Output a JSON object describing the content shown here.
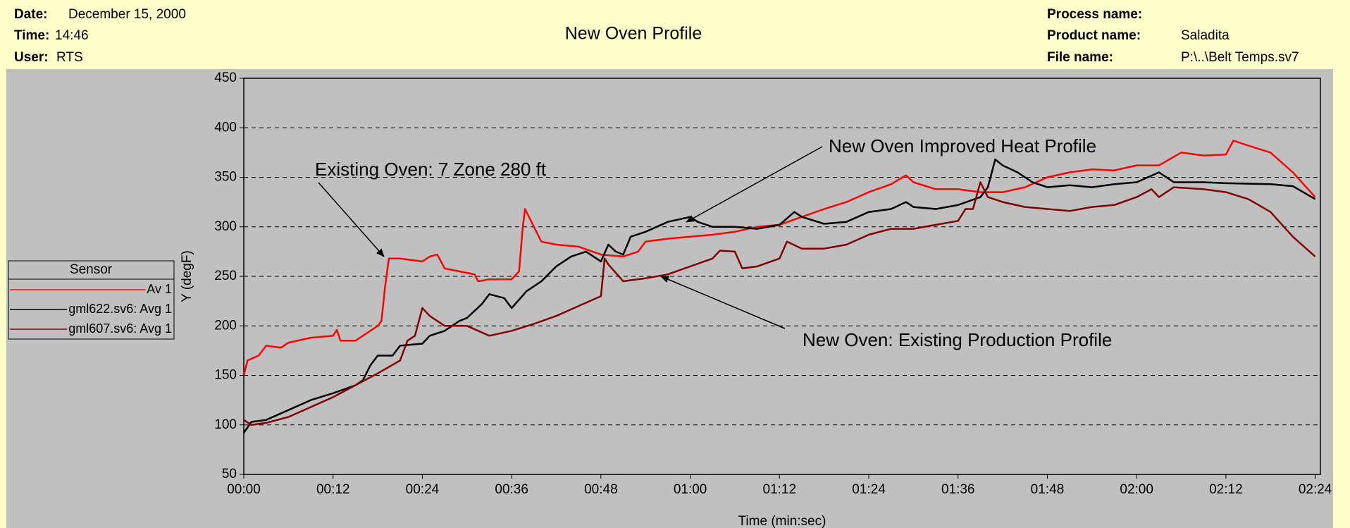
{
  "header": {
    "date_label": "Date:",
    "date": "December 15, 2000",
    "time_label": "Time:",
    "time": "14:46",
    "user_label": "User:",
    "user": "RTS",
    "process_label": "Process name:",
    "product_label": "Product name:",
    "product": "Saladita",
    "file_label": "File name:",
    "file": "P:\\..\\Belt Temps.sv7"
  },
  "chart_data": {
    "type": "line",
    "title": "New Oven Profile",
    "xlabel": "Time (min:sec)",
    "ylabel": "Y (degF)",
    "xlim": [
      0,
      144.7
    ],
    "ylim": [
      50,
      450
    ],
    "xticks": [
      {
        "value": 0,
        "label": "00:00"
      },
      {
        "value": 12,
        "label": "00:12"
      },
      {
        "value": 24,
        "label": "00:24"
      },
      {
        "value": 36,
        "label": "00:36"
      },
      {
        "value": 48,
        "label": "00:48"
      },
      {
        "value": 60,
        "label": "01:00"
      },
      {
        "value": 72,
        "label": "01:12"
      },
      {
        "value": 84,
        "label": "01:24"
      },
      {
        "value": 96,
        "label": "01:36"
      },
      {
        "value": 108,
        "label": "01:48"
      },
      {
        "value": 120,
        "label": "02:00"
      },
      {
        "value": 132,
        "label": "02:12"
      },
      {
        "value": 144,
        "label": "02:24"
      }
    ],
    "yticks": [
      50,
      100,
      150,
      200,
      250,
      300,
      350,
      400,
      450
    ],
    "grid": true,
    "legend_title": "Sensor",
    "annotations": [
      "Existing Oven: 7 Zone 280 ft",
      "New Oven Improved Heat Profile",
      "New Oven:  Existing Production Profile"
    ],
    "series": [
      {
        "name": "Av 1",
        "color": "#ff0000",
        "x": [
          0,
          0.5,
          2,
          3,
          5,
          6,
          9,
          12,
          12.5,
          13,
          15,
          16,
          18,
          18.5,
          19,
          19.5,
          21,
          24,
          25,
          26,
          27,
          29,
          31,
          31.5,
          33,
          36,
          37,
          37.5,
          37.8,
          39,
          40,
          42,
          45,
          48,
          51,
          53,
          54,
          57,
          60,
          63,
          66,
          69,
          72,
          75,
          78,
          81,
          84,
          87,
          89,
          90,
          93,
          96,
          99,
          102,
          105,
          108,
          111,
          114,
          117,
          120,
          123,
          126,
          129,
          132,
          133,
          135,
          138,
          141,
          144
        ],
        "values": [
          150,
          165,
          170,
          180,
          178,
          183,
          188,
          190,
          196,
          185,
          185,
          190,
          200,
          205,
          240,
          268,
          268,
          265,
          270,
          272,
          258,
          255,
          252,
          245,
          247,
          247,
          255,
          300,
          318,
          300,
          285,
          282,
          280,
          272,
          270,
          275,
          285,
          288,
          290,
          292,
          295,
          300,
          302,
          310,
          318,
          325,
          335,
          343,
          352,
          345,
          338,
          338,
          335,
          335,
          340,
          350,
          355,
          358,
          357,
          362,
          362,
          375,
          372,
          373,
          387,
          382,
          375,
          355,
          330
        ]
      },
      {
        "name": "gml622.sv6: Avg 1",
        "color": "#000000",
        "x": [
          0,
          1,
          3,
          6,
          9,
          12,
          15,
          16,
          17,
          18,
          20,
          21,
          24,
          25,
          27,
          29,
          30,
          32,
          33,
          35,
          36,
          38,
          40,
          42,
          44,
          46,
          48,
          49,
          50,
          51,
          52,
          54,
          57,
          60,
          61,
          63,
          66,
          69,
          72,
          74,
          75,
          78,
          81,
          84,
          87,
          89,
          90,
          93,
          96,
          99,
          100,
          101,
          102,
          104,
          106,
          108,
          111,
          114,
          117,
          120,
          123,
          125,
          129,
          132,
          138,
          141,
          144
        ],
        "values": [
          92,
          103,
          105,
          115,
          125,
          132,
          140,
          145,
          160,
          170,
          170,
          180,
          182,
          190,
          195,
          205,
          208,
          222,
          232,
          228,
          218,
          235,
          245,
          260,
          270,
          275,
          265,
          282,
          275,
          272,
          290,
          295,
          305,
          310,
          305,
          300,
          300,
          298,
          302,
          315,
          310,
          303,
          305,
          315,
          318,
          325,
          320,
          318,
          322,
          330,
          340,
          368,
          362,
          355,
          345,
          340,
          342,
          340,
          343,
          345,
          355,
          345,
          345,
          344,
          343,
          341,
          328
        ]
      },
      {
        "name": "gml607.sv6: Avg 1",
        "color": "#800000",
        "x": [
          0,
          1,
          3,
          6,
          9,
          12,
          15,
          18,
          21,
          22,
          23,
          24,
          25,
          27,
          30,
          33,
          36,
          39,
          42,
          45,
          48,
          48.5,
          49,
          51,
          54,
          57,
          60,
          63,
          64,
          66,
          67,
          69,
          72,
          73,
          75,
          78,
          81,
          84,
          87,
          90,
          93,
          96,
          97,
          98,
          99,
          100,
          102,
          105,
          108,
          111,
          114,
          117,
          120,
          122,
          123,
          125,
          129,
          132,
          135,
          138,
          141,
          144
        ],
        "values": [
          105,
          100,
          102,
          108,
          118,
          128,
          140,
          152,
          165,
          185,
          190,
          218,
          210,
          200,
          200,
          190,
          195,
          202,
          210,
          220,
          230,
          268,
          262,
          245,
          248,
          252,
          260,
          268,
          276,
          275,
          258,
          260,
          268,
          285,
          278,
          278,
          282,
          292,
          298,
          298,
          302,
          306,
          318,
          318,
          345,
          330,
          325,
          320,
          318,
          316,
          320,
          322,
          330,
          338,
          330,
          340,
          338,
          335,
          328,
          315,
          290,
          270
        ]
      }
    ]
  }
}
